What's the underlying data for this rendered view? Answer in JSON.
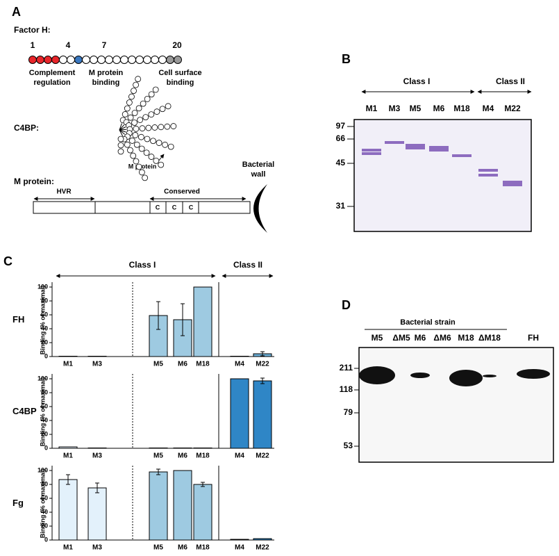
{
  "panels": {
    "a": "A",
    "b": "B",
    "c": "C",
    "d": "D"
  },
  "panel_a": {
    "factor_h": {
      "title": "Factor H:",
      "numbers": [
        "1",
        "4",
        "7",
        "20"
      ],
      "labels": [
        "Complement regulation",
        "M protein binding",
        "Cell surface binding"
      ]
    },
    "c4bp": {
      "title": "C4BP:",
      "label": "M protein"
    },
    "m_protein": {
      "title": "M protein:",
      "hvr": "HVR",
      "conserved": "Conserved",
      "repeats": [
        "C",
        "C",
        "C"
      ],
      "wall": "Bacterial wall"
    }
  },
  "panel_b": {
    "groups": [
      "Class I",
      "Class II"
    ],
    "lanes": [
      "M1",
      "M3",
      "M5",
      "M6",
      "M18",
      "M4",
      "M22"
    ],
    "markers": [
      "97",
      "66",
      "45",
      "31"
    ]
  },
  "panel_c": {
    "groups": [
      "Class I",
      "Class II"
    ]
  },
  "chart_data": [
    {
      "type": "bar",
      "title": "FH",
      "y_label": "Binding (% of maximal)",
      "categories": [
        "M1",
        "M3",
        "M5",
        "M6",
        "M18",
        "M4",
        "M22"
      ],
      "values": [
        0.5,
        0.5,
        59,
        53,
        100,
        0.5,
        4
      ],
      "errors": [
        null,
        null,
        20,
        23,
        null,
        null,
        3
      ],
      "colors": [
        "#9ecae1",
        "#9ecae1",
        "#9ecae1",
        "#9ecae1",
        "#9ecae1",
        "#6baed6",
        "#6baed6"
      ],
      "ylim": [
        0,
        105
      ],
      "yticks": [
        0,
        20,
        40,
        60,
        80,
        100
      ]
    },
    {
      "type": "bar",
      "title": "C4BP",
      "y_label": "Binding (% of maximal)",
      "categories": [
        "M1",
        "M3",
        "M5",
        "M6",
        "M18",
        "M4",
        "M22"
      ],
      "values": [
        2,
        0.5,
        0.5,
        0.5,
        0.5,
        100,
        97
      ],
      "errors": [
        null,
        null,
        null,
        null,
        null,
        null,
        4
      ],
      "colors": [
        "#e3f1fb",
        "#e3f1fb",
        "#9ecae1",
        "#9ecae1",
        "#9ecae1",
        "#2f86c6",
        "#2f86c6"
      ],
      "ylim": [
        0,
        105
      ],
      "yticks": [
        0,
        20,
        40,
        60,
        80,
        100
      ]
    },
    {
      "type": "bar",
      "title": "Fg",
      "y_label": "Binding (% of maximal)",
      "categories": [
        "M1",
        "M3",
        "M5",
        "M6",
        "M18",
        "M4",
        "M22"
      ],
      "values": [
        87,
        75,
        98,
        100,
        80,
        1,
        2
      ],
      "errors": [
        7,
        7,
        4,
        null,
        3,
        null,
        null
      ],
      "colors": [
        "#e3f1fb",
        "#e3f1fb",
        "#9ecae1",
        "#9ecae1",
        "#9ecae1",
        "#2f86c6",
        "#2f86c6"
      ],
      "ylim": [
        0,
        105
      ],
      "yticks": [
        0,
        20,
        40,
        60,
        80,
        100
      ]
    }
  ],
  "panel_d": {
    "header": "Bacterial strain",
    "lanes": [
      "M5",
      "ΔM5",
      "M6",
      "ΔM6",
      "M18",
      "ΔM18",
      "FH"
    ],
    "markers": [
      "211",
      "118",
      "79",
      "53"
    ]
  }
}
